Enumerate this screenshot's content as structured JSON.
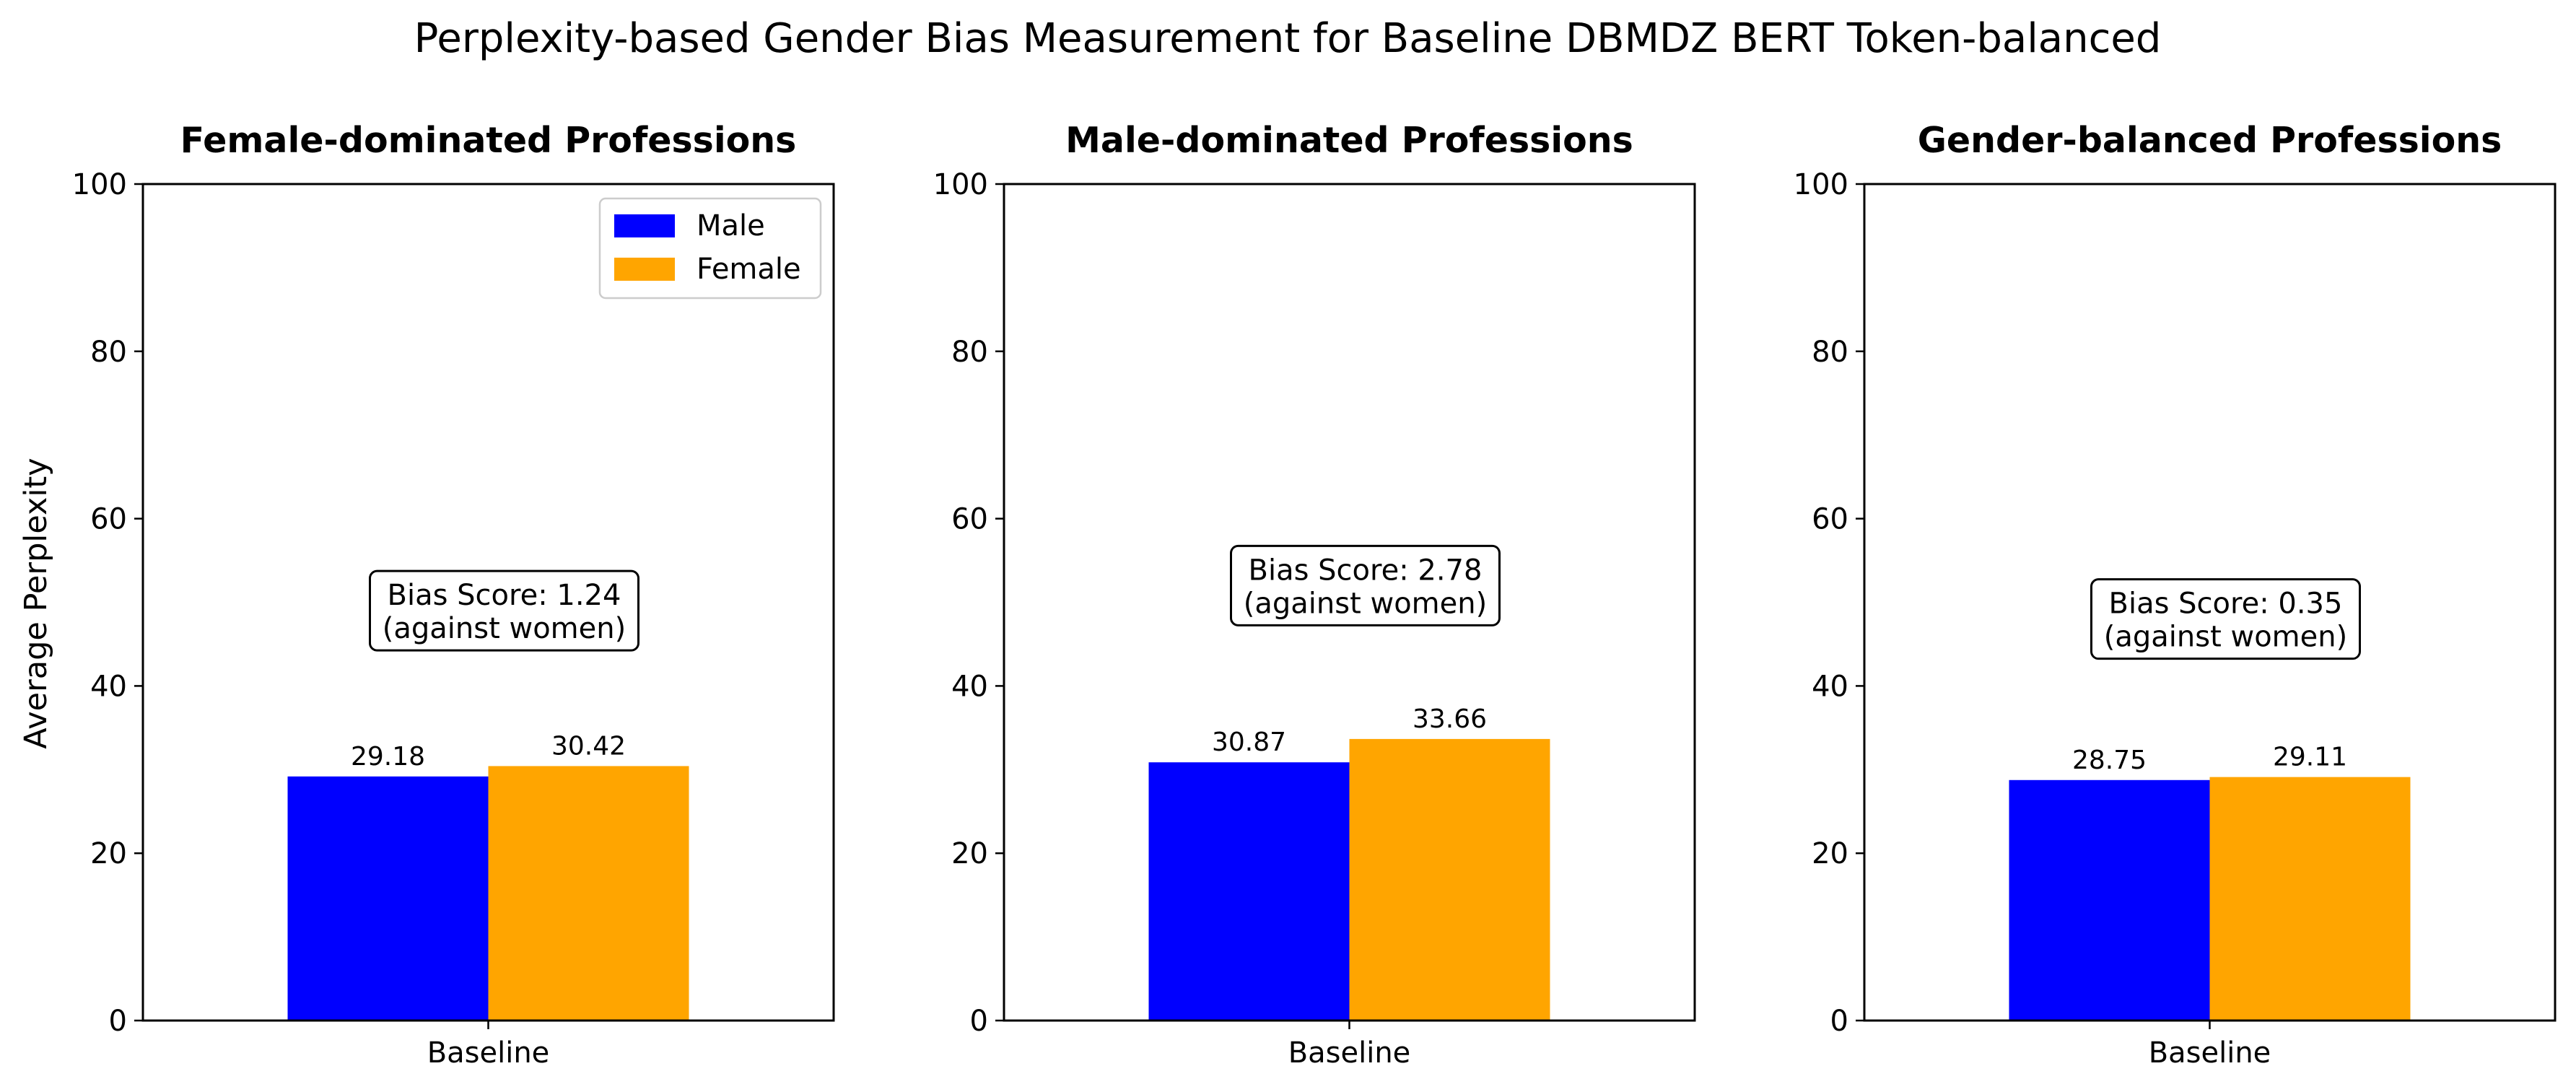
{
  "figure_title": "Perplexity-based Gender Bias Measurement for Baseline DBMDZ BERT Token-balanced",
  "colors": {
    "male": "#0000ff",
    "female": "#ffa500"
  },
  "chart_data": [
    {
      "type": "bar",
      "title": "Female-dominated Professions",
      "ylabel": "Average Perplexity",
      "xlabel": "",
      "categories": [
        "Baseline"
      ],
      "ylim": [
        0,
        100
      ],
      "yticks": [
        0,
        20,
        40,
        60,
        80,
        100
      ],
      "series": [
        {
          "name": "Male",
          "values": [
            29.18
          ],
          "labels": [
            "29.18"
          ]
        },
        {
          "name": "Female",
          "values": [
            30.42
          ],
          "labels": [
            "30.42"
          ]
        }
      ],
      "annotation": {
        "line1": "Bias Score: 1.24",
        "line2": "(against women)",
        "y": 49
      },
      "legend": "top-right",
      "grid": false
    },
    {
      "type": "bar",
      "title": "Male-dominated Professions",
      "ylabel": "",
      "xlabel": "",
      "categories": [
        "Baseline"
      ],
      "ylim": [
        0,
        100
      ],
      "yticks": [
        0,
        20,
        40,
        60,
        80,
        100
      ],
      "series": [
        {
          "name": "Male",
          "values": [
            30.87
          ],
          "labels": [
            "30.87"
          ]
        },
        {
          "name": "Female",
          "values": [
            33.66
          ],
          "labels": [
            "33.66"
          ]
        }
      ],
      "annotation": {
        "line1": "Bias Score: 2.78",
        "line2": "(against women)",
        "y": 52
      },
      "grid": false
    },
    {
      "type": "bar",
      "title": "Gender-balanced Professions",
      "ylabel": "",
      "xlabel": "",
      "categories": [
        "Baseline"
      ],
      "ylim": [
        0,
        100
      ],
      "yticks": [
        0,
        20,
        40,
        60,
        80,
        100
      ],
      "series": [
        {
          "name": "Male",
          "values": [
            28.75
          ],
          "labels": [
            "28.75"
          ]
        },
        {
          "name": "Female",
          "values": [
            29.11
          ],
          "labels": [
            "29.11"
          ]
        }
      ],
      "annotation": {
        "line1": "Bias Score: 0.35",
        "line2": "(against women)",
        "y": 48
      },
      "grid": false
    }
  ]
}
